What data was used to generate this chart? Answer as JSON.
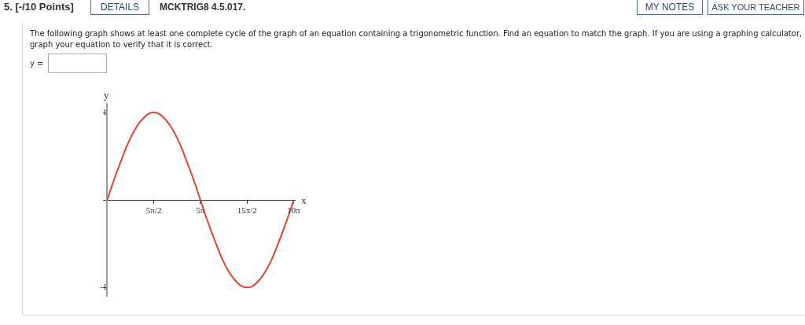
{
  "chart_data": {
    "type": "line",
    "xlabel": "x",
    "ylabel": "y",
    "x": [
      0,
      0.79,
      1.57,
      2.36,
      3.14,
      3.93,
      4.71,
      5.5,
      6.28,
      7.07,
      7.85,
      8.64,
      9.42,
      10.21,
      11,
      11.78,
      12.57,
      13.35,
      14.14,
      14.92,
      15.71,
      16.49,
      17.28,
      18.06,
      18.85,
      19.63,
      20.42,
      21.21,
      21.99,
      22.78,
      23.56,
      24.35,
      25.13,
      25.92,
      26.7,
      27.49,
      28.27,
      29.06,
      29.85,
      30.63,
      31.42
    ],
    "series": [
      {
        "color": "#e8412c",
        "values": [
          0,
          0.16,
          0.31,
          0.45,
          0.59,
          0.71,
          0.81,
          0.89,
          0.95,
          0.99,
          1,
          0.99,
          0.95,
          0.89,
          0.81,
          0.71,
          0.59,
          0.45,
          0.31,
          0.16,
          0,
          -0.16,
          -0.31,
          -0.45,
          -0.59,
          -0.71,
          -0.81,
          -0.89,
          -0.95,
          -0.99,
          -1,
          -0.99,
          -0.95,
          -0.89,
          -0.81,
          -0.71,
          -0.59,
          -0.45,
          -0.31,
          -0.16,
          0
        ]
      }
    ],
    "xlim": [
      -0.7,
      31.6
    ],
    "ylim": [
      -1.1,
      1.1
    ],
    "xticks": [
      {
        "value": 7.854,
        "label": "5π/2"
      },
      {
        "value": 15.708,
        "label": "5π"
      },
      {
        "value": 23.562,
        "label": "15π/2"
      },
      {
        "value": 31.416,
        "label": "10π"
      }
    ],
    "yticks": [
      -1,
      1
    ],
    "annotations": [
      "5. [-/10 Points]",
      "DETAILS",
      "MCKTRIG8 4.5.017.",
      "MY NOTES",
      "ASK YOUR TEACHER",
      "The following graph shows at least one complete cycle of the graph of an equation containing a trigonometric function. Find an equation to match the graph. If you are using a graphing calculator, graph your equation to verify that it is correct.",
      "y ="
    ]
  }
}
